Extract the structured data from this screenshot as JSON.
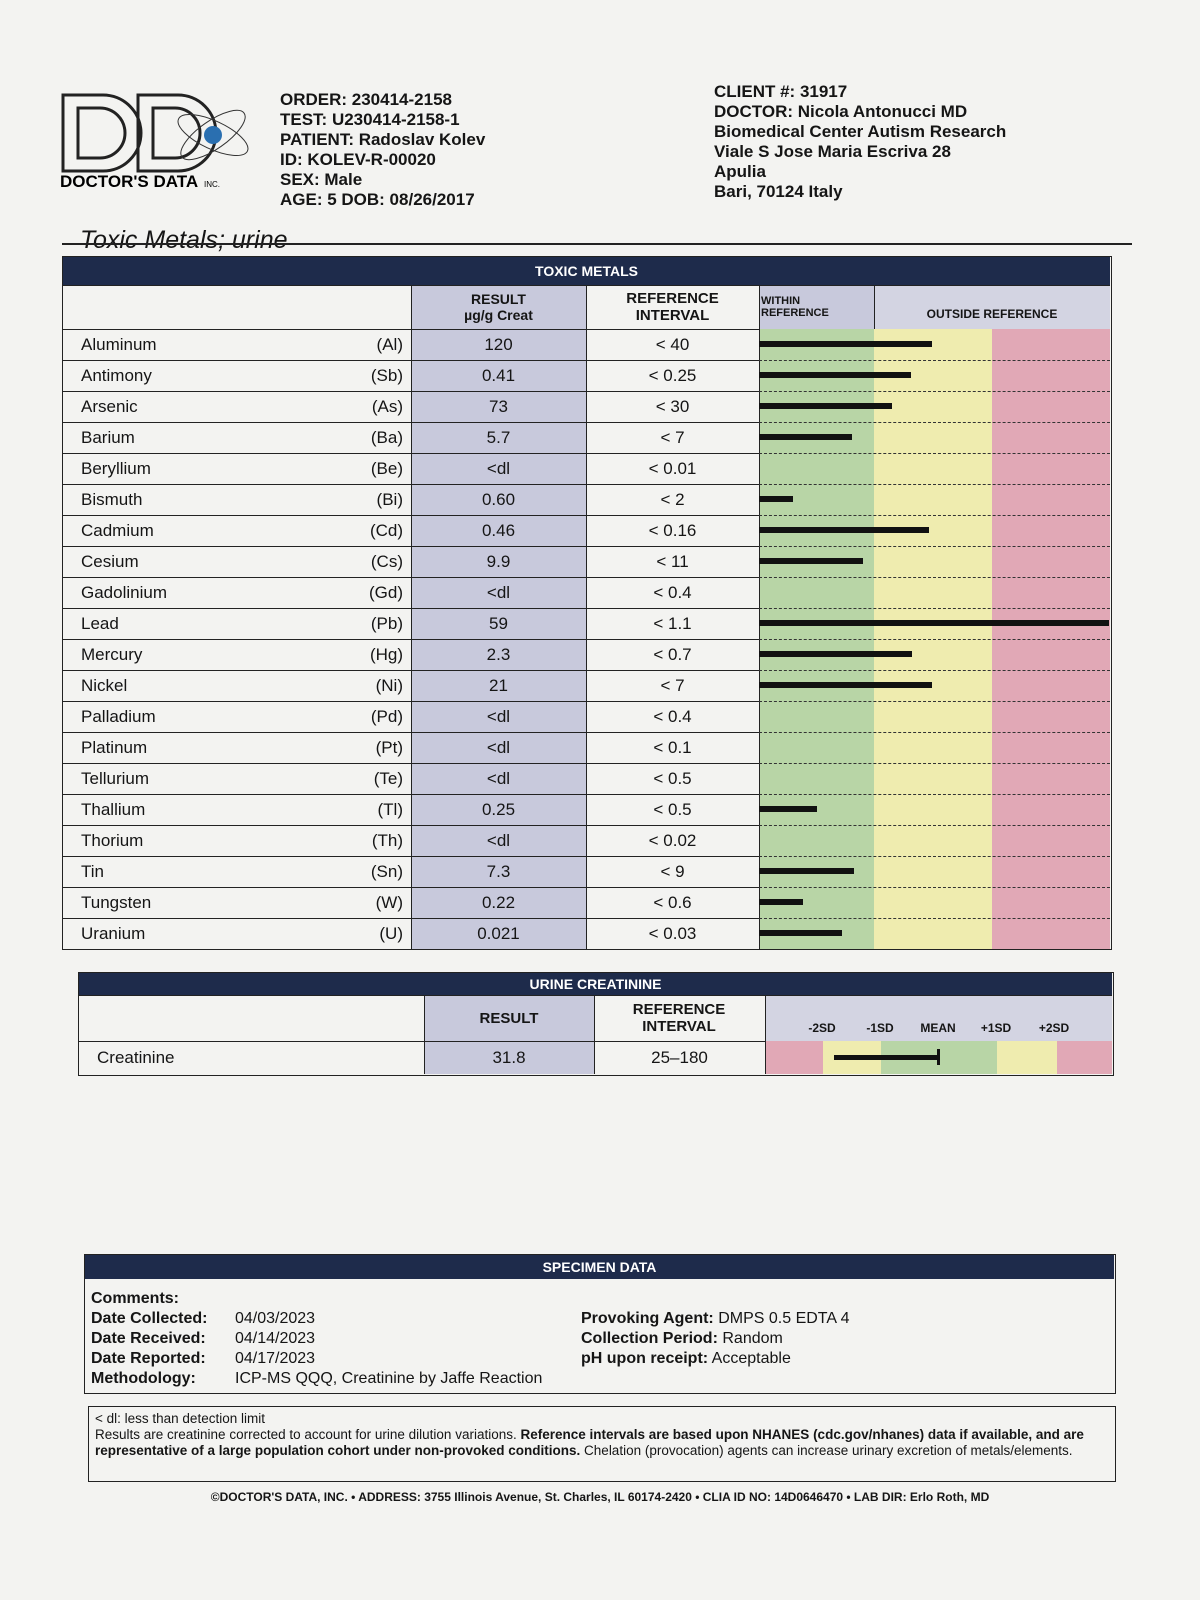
{
  "header": {
    "logo": "DOCTOR'S DATA",
    "logo_suffix": "INC.",
    "left": [
      "ORDER: 230414-2158",
      "TEST: U230414-2158-1",
      "PATIENT: Radoslav Kolev",
      "ID: KOLEV-R-00020",
      "SEX: Male",
      "AGE: 5 DOB: 08/26/2017"
    ],
    "right": [
      "CLIENT #: 31917",
      "DOCTOR: Nicola Antonucci MD",
      "Biomedical Center Autism Research",
      "Viale S Jose Maria Escriva 28",
      "Apulia",
      "Bari, 70124 Italy"
    ]
  },
  "title": "Toxic Metals; urine",
  "toxic": {
    "band": "TOXIC METALS",
    "columns": {
      "result": "RESULT",
      "unit": "µg/g Creat",
      "ref1": "REFERENCE",
      "ref2": "INTERVAL",
      "within": "WITHIN REFERENCE",
      "outside": "OUTSIDE REFERENCE"
    },
    "rows": [
      [
        "Aluminum",
        "(Al)",
        "120",
        "< 40"
      ],
      [
        "Antimony",
        "(Sb)",
        "0.41",
        "< 0.25"
      ],
      [
        "Arsenic",
        "(As)",
        "73",
        "< 30"
      ],
      [
        "Barium",
        "(Ba)",
        "5.7",
        "< 7"
      ],
      [
        "Beryllium",
        "(Be)",
        "<dl",
        "< 0.01"
      ],
      [
        "Bismuth",
        "(Bi)",
        "0.60",
        "< 2"
      ],
      [
        "Cadmium",
        "(Cd)",
        "0.46",
        "< 0.16"
      ],
      [
        "Cesium",
        "(Cs)",
        "9.9",
        "< 11"
      ],
      [
        "Gadolinium",
        "(Gd)",
        "<dl",
        "< 0.4"
      ],
      [
        "Lead",
        "(Pb)",
        "59",
        "< 1.1"
      ],
      [
        "Mercury",
        "(Hg)",
        "2.3",
        "< 0.7"
      ],
      [
        "Nickel",
        "(Ni)",
        "21",
        "< 7"
      ],
      [
        "Palladium",
        "(Pd)",
        "<dl",
        "< 0.4"
      ],
      [
        "Platinum",
        "(Pt)",
        "<dl",
        "< 0.1"
      ],
      [
        "Tellurium",
        "(Te)",
        "<dl",
        "< 0.5"
      ],
      [
        "Thallium",
        "(Tl)",
        "0.25",
        "< 0.5"
      ],
      [
        "Thorium",
        "(Th)",
        "<dl",
        "< 0.02"
      ],
      [
        "Tin",
        "(Sn)",
        "7.3",
        "< 9"
      ],
      [
        "Tungsten",
        "(W)",
        "0.22",
        "< 0.6"
      ],
      [
        "Uranium",
        "(U)",
        "0.021",
        "< 0.03"
      ]
    ]
  },
  "creatinine": {
    "band": "URINE CREATININE",
    "columns": {
      "result": "RESULT",
      "ref": "REFERENCE INTERVAL"
    },
    "scale": [
      "-2SD",
      "-1SD",
      "MEAN",
      "+1SD",
      "+2SD"
    ],
    "row": [
      "Creatinine",
      "31.8",
      "25–180"
    ]
  },
  "specimen": {
    "band": "SPECIMEN DATA",
    "comments": "Comments:",
    "left": [
      [
        "Date Collected:",
        "04/03/2023"
      ],
      [
        "Date Received:",
        "04/14/2023"
      ],
      [
        "Date Reported:",
        "04/17/2023"
      ],
      [
        "Methodology:",
        "ICP-MS QQQ, Creatinine by Jaffe Reaction"
      ]
    ],
    "right": [
      [
        "Provoking Agent:",
        "DMPS 0.5 EDTA 4"
      ],
      [
        "Collection Period:",
        "Random"
      ],
      [
        "pH upon receipt:",
        "Acceptable"
      ]
    ]
  },
  "notes": {
    "dl": "< dl: less than detection limit",
    "text": [
      "Results are creatinine corrected to account for urine dilution variations. ",
      "Reference intervals are based upon NHANES (cdc.gov/nhanes) data if available, and are representative of a large population cohort under non-provoked conditions.",
      " Chelation (provocation) agents can increase urinary excretion of metals/elements."
    ]
  },
  "footer": "©DOCTOR'S DATA, INC. • ADDRESS: 3755 Illinois Avenue, St. Charles, IL 60174-2420 • CLIA ID NO: 14D0646470 • LAB DIR: Erlo Roth, MD"
}
